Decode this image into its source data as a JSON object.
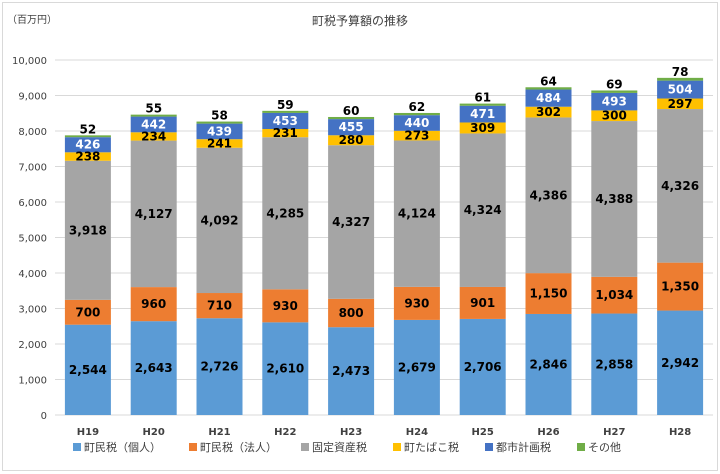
{
  "chart_data": {
    "type": "bar",
    "stacked": true,
    "title": "町税予算額の推移",
    "unit_label": "（百万円）",
    "categories": [
      "H19",
      "H20",
      "H21",
      "H22",
      "H23",
      "H24",
      "H25",
      "H26",
      "H27",
      "H28"
    ],
    "ylim": [
      0,
      10000
    ],
    "yticks": [
      0,
      1000,
      2000,
      3000,
      4000,
      5000,
      6000,
      7000,
      8000,
      9000,
      10000
    ],
    "ytick_labels": [
      "0",
      "1,000",
      "2,000",
      "3,000",
      "4,000",
      "5,000",
      "6,000",
      "7,000",
      "8,000",
      "9,000",
      "10,000"
    ],
    "grid": true,
    "legend_position": "bottom",
    "series": [
      {
        "name": "町民税（個人）",
        "color": "#5b9bd5",
        "label_color": "#000000",
        "values": [
          2544,
          2643,
          2726,
          2610,
          2473,
          2679,
          2706,
          2846,
          2858,
          2942
        ],
        "labels": [
          "2,544",
          "2,643",
          "2,726",
          "2,610",
          "2,473",
          "2,679",
          "2,706",
          "2,846",
          "2,858",
          "2,942"
        ]
      },
      {
        "name": "町民税（法人）",
        "color": "#ed7d31",
        "label_color": "#000000",
        "values": [
          700,
          960,
          710,
          930,
          800,
          930,
          901,
          1150,
          1034,
          1350
        ],
        "labels": [
          "700",
          "960",
          "710",
          "930",
          "800",
          "930",
          "901",
          "1,150",
          "1,034",
          "1,350"
        ]
      },
      {
        "name": "固定資産税",
        "color": "#a5a5a5",
        "label_color": "#000000",
        "values": [
          3918,
          4127,
          4092,
          4285,
          4327,
          4124,
          4324,
          4386,
          4388,
          4326
        ],
        "labels": [
          "3,918",
          "4,127",
          "4,092",
          "4,285",
          "4,327",
          "4,124",
          "4,324",
          "4,386",
          "4,388",
          "4,326"
        ]
      },
      {
        "name": "町たばこ税",
        "color": "#ffc000",
        "label_color": "#000000",
        "values": [
          238,
          234,
          241,
          231,
          280,
          273,
          309,
          302,
          300,
          297
        ],
        "labels": [
          "238",
          "234",
          "241",
          "231",
          "280",
          "273",
          "309",
          "302",
          "300",
          "297"
        ]
      },
      {
        "name": "都市計画税",
        "color": "#4472c4",
        "label_color": "#ffffff",
        "values": [
          426,
          442,
          439,
          453,
          455,
          440,
          471,
          484,
          493,
          504
        ],
        "labels": [
          "426",
          "442",
          "439",
          "453",
          "455",
          "440",
          "471",
          "484",
          "493",
          "504"
        ]
      },
      {
        "name": "その他",
        "color": "#70ad47",
        "label_color": "#000000",
        "values": [
          52,
          55,
          58,
          59,
          60,
          62,
          61,
          64,
          69,
          78
        ],
        "labels": [
          "52",
          "55",
          "58",
          "59",
          "60",
          "62",
          "61",
          "64",
          "69",
          "78"
        ]
      }
    ]
  }
}
